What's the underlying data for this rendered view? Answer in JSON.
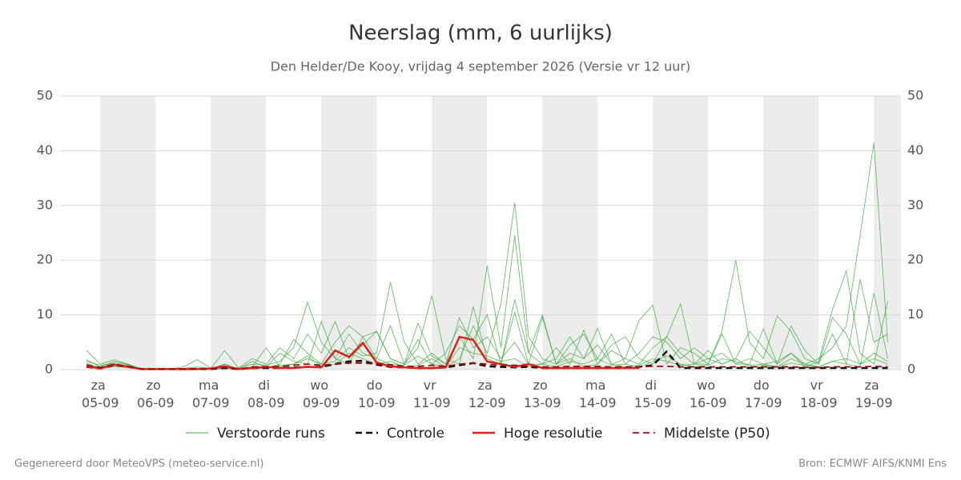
{
  "chart_data": {
    "type": "line",
    "title": "Neerslag (mm, 6 uurlijks)",
    "subtitle": "Den Helder/De Kooy, vrijdag  4 september 2026 (Versie vr 12 uur)",
    "footer_left": "Gegenereerd door MeteoVPS (meteo-service.nl)",
    "footer_right": "Bron: ECMWF AIFS/KNMI Ens",
    "categories": [
      null,
      "za 05-09",
      null,
      null,
      null,
      "zo 06-09",
      null,
      null,
      null,
      "ma 07-09",
      null,
      null,
      null,
      "di 08-09",
      null,
      null,
      null,
      "wo 09-09",
      null,
      null,
      null,
      "do 10-09",
      null,
      null,
      null,
      "vr 11-09",
      null,
      null,
      null,
      "za 12-09",
      null,
      null,
      null,
      "zo 13-09",
      null,
      null,
      null,
      "ma 14-09",
      null,
      null,
      null,
      "di 15-09",
      null,
      null,
      null,
      "wo 16-09",
      null,
      null,
      null,
      "do 17-09",
      null,
      null,
      null,
      "vr 18-09",
      null,
      null,
      null,
      "za 19-09",
      null
    ],
    "ylim": [
      0,
      50
    ],
    "yticks": [
      0,
      10,
      20,
      30,
      40,
      50
    ],
    "grid": true,
    "ensemble": {
      "name": "Verstoorde runs",
      "color": "#3ea83e",
      "runs": [
        [
          1.5,
          0.8,
          1.2,
          0.9,
          0.1,
          0.1,
          0.1,
          0.2,
          0.5,
          0.2,
          3.5,
          0.3,
          1.0,
          0.8,
          1.5,
          4.0,
          12.3,
          5.0,
          2.0,
          6.5,
          3.0,
          2.0,
          1.0,
          0.8,
          2.5,
          1.0,
          0.5,
          2.0,
          8.0,
          3.0,
          12.0,
          30.5,
          6.0,
          2.0,
          1.0,
          3.0,
          2.0,
          7.5,
          1.0,
          0.5,
          0.8,
          2.0,
          1.5,
          0.8,
          1.0,
          2.0,
          3.0,
          1.0,
          2.0,
          1.0,
          1.5,
          3.0,
          1.0,
          2.0,
          4.0,
          8.0,
          24.5,
          41.5,
          5.0
        ],
        [
          3.5,
          1.0,
          1.8,
          1.0,
          0.1,
          0.1,
          0.1,
          0.5,
          1.8,
          0.3,
          0.5,
          0.3,
          2.0,
          1.0,
          4.0,
          2.0,
          6.5,
          3.0,
          8.8,
          2.0,
          4.5,
          7.0,
          2.0,
          1.0,
          8.5,
          2.5,
          1.0,
          6.0,
          2.0,
          19.0,
          4.0,
          24.5,
          3.0,
          10.0,
          1.0,
          4.5,
          6.5,
          2.0,
          6.5,
          1.0,
          3.0,
          6.0,
          5.0,
          2.0,
          4.0,
          2.0,
          1.0,
          2.0,
          0.5,
          0.8,
          0.5,
          2.0,
          1.0,
          0.5,
          1.5,
          1.0,
          0.5,
          14.0,
          2.0
        ],
        [
          1.0,
          0.3,
          0.8,
          0.8,
          0.1,
          0.1,
          0.1,
          0.1,
          0.2,
          0.1,
          1.0,
          0.1,
          0.5,
          4.0,
          0.5,
          1.0,
          2.0,
          1.0,
          1.5,
          4.0,
          2.5,
          3.0,
          16.0,
          5.0,
          1.0,
          3.0,
          1.0,
          9.5,
          4.0,
          6.0,
          2.0,
          5.0,
          1.0,
          9.5,
          1.0,
          2.0,
          0.5,
          1.0,
          3.5,
          2.0,
          9.0,
          11.8,
          1.0,
          4.0,
          3.0,
          1.0,
          7.0,
          20.0,
          5.0,
          2.0,
          9.8,
          7.0,
          2.0,
          1.0,
          9.5,
          6.5,
          1.0,
          2.0,
          1.0
        ],
        [
          0.8,
          0.5,
          1.5,
          1.0,
          0.1,
          0.1,
          0.1,
          0.1,
          0.1,
          0.1,
          0.2,
          0.1,
          1.5,
          0.5,
          3.0,
          1.5,
          1.0,
          8.8,
          2.0,
          1.0,
          6.0,
          7.0,
          2.0,
          1.0,
          4.0,
          13.5,
          2.0,
          1.0,
          11.5,
          2.0,
          1.0,
          12.8,
          3.0,
          1.0,
          2.0,
          6.0,
          2.0,
          4.5,
          1.0,
          2.0,
          1.0,
          4.0,
          6.0,
          12.0,
          1.0,
          3.5,
          1.0,
          2.0,
          7.0,
          4.0,
          1.0,
          3.0,
          0.5,
          1.5,
          11.0,
          18.0,
          3.0,
          1.0,
          12.5
        ],
        [
          1.8,
          0.5,
          1.0,
          0.5,
          0.1,
          0.1,
          0.1,
          0.1,
          0.1,
          0.1,
          1.0,
          0.1,
          0.5,
          0.3,
          1.0,
          5.5,
          3.0,
          1.0,
          5.0,
          8.0,
          6.0,
          2.0,
          8.0,
          1.0,
          5.5,
          1.0,
          3.0,
          8.0,
          5.5,
          10.0,
          1.0,
          10.5,
          1.0,
          1.0,
          4.0,
          1.0,
          7.2,
          1.0,
          4.5,
          6.0,
          2.0,
          1.0,
          6.0,
          3.0,
          1.0,
          1.0,
          6.5,
          1.0,
          1.0,
          7.5,
          1.0,
          8.0,
          3.5,
          1.0,
          6.5,
          1.0,
          16.5,
          5.0,
          6.5
        ],
        [
          1.2,
          0.2,
          0.6,
          0.4,
          0.1,
          0.1,
          0.1,
          0.1,
          0.1,
          0.1,
          0.3,
          0.1,
          0.3,
          0.2,
          0.8,
          1.0,
          2.5,
          0.5,
          1.0,
          3.0,
          2.0,
          1.0,
          1.5,
          0.5,
          0.8,
          2.0,
          0.5,
          4.0,
          3.0,
          2.5,
          1.5,
          2.0,
          0.5,
          1.0,
          0.5,
          1.5,
          1.0,
          2.0,
          0.8,
          1.0,
          0.5,
          1.5,
          2.5,
          1.0,
          0.5,
          0.8,
          2.0,
          1.5,
          0.8,
          1.0,
          0.5,
          1.2,
          0.8,
          0.5,
          1.5,
          2.0,
          1.0,
          3.0,
          1.5
        ]
      ]
    },
    "series": [
      {
        "name": "Controle",
        "color": "#111111",
        "dashed": true,
        "width": 2.5,
        "values": [
          0.5,
          0.2,
          0.8,
          0.5,
          0.1,
          0.1,
          0.1,
          0.1,
          0.1,
          0.1,
          0.3,
          0.1,
          0.3,
          0.3,
          0.3,
          0.4,
          0.5,
          0.5,
          1.0,
          1.5,
          1.6,
          0.9,
          0.5,
          0.4,
          0.3,
          0.3,
          0.4,
          0.8,
          1.2,
          0.6,
          0.5,
          0.4,
          0.5,
          0.3,
          0.3,
          0.3,
          0.3,
          0.3,
          0.3,
          0.3,
          0.5,
          0.8,
          3.3,
          0.3,
          0.3,
          0.3,
          0.3,
          0.3,
          0.3,
          0.3,
          0.3,
          0.3,
          0.3,
          0.3,
          0.3,
          0.3,
          0.3,
          0.3,
          0.3
        ]
      },
      {
        "name": "Hoge resolutie",
        "color": "#e0201a",
        "dashed": false,
        "width": 2.5,
        "values": [
          0.6,
          0.2,
          0.9,
          0.5,
          0.1,
          0.1,
          0.1,
          0.1,
          0.1,
          0.2,
          0.6,
          0.1,
          0.3,
          0.5,
          0.3,
          0.3,
          0.5,
          0.4,
          3.5,
          2.3,
          4.9,
          1.3,
          0.6,
          0.4,
          0.3,
          0.3,
          0.4,
          6.0,
          5.4,
          1.5,
          1.0,
          0.5,
          1.0,
          0.3,
          0.3,
          0.3,
          0.3,
          0.3,
          0.3,
          0.3,
          0.3,
          null,
          null,
          null,
          null,
          null,
          null,
          null,
          null,
          null,
          null,
          null,
          null,
          null,
          null,
          null,
          null,
          null,
          null
        ]
      },
      {
        "name": "Middelste (P50)",
        "color": "#a01010",
        "dashed": true,
        "width": 1.8,
        "values": [
          0.8,
          0.4,
          1.0,
          0.6,
          0.1,
          0.1,
          0.1,
          0.1,
          0.2,
          0.1,
          0.4,
          0.1,
          0.5,
          0.5,
          0.6,
          0.8,
          1.0,
          0.8,
          1.0,
          1.2,
          1.2,
          1.0,
          0.9,
          0.6,
          0.6,
          0.8,
          0.6,
          1.0,
          1.2,
          1.0,
          0.8,
          0.8,
          0.6,
          0.5,
          0.5,
          0.6,
          0.6,
          0.6,
          0.5,
          0.5,
          0.5,
          0.6,
          0.6,
          0.5,
          0.5,
          0.5,
          0.5,
          0.5,
          0.5,
          0.5,
          0.5,
          0.5,
          0.4,
          0.4,
          0.5,
          0.5,
          0.5,
          0.6,
          0.5
        ]
      }
    ]
  }
}
